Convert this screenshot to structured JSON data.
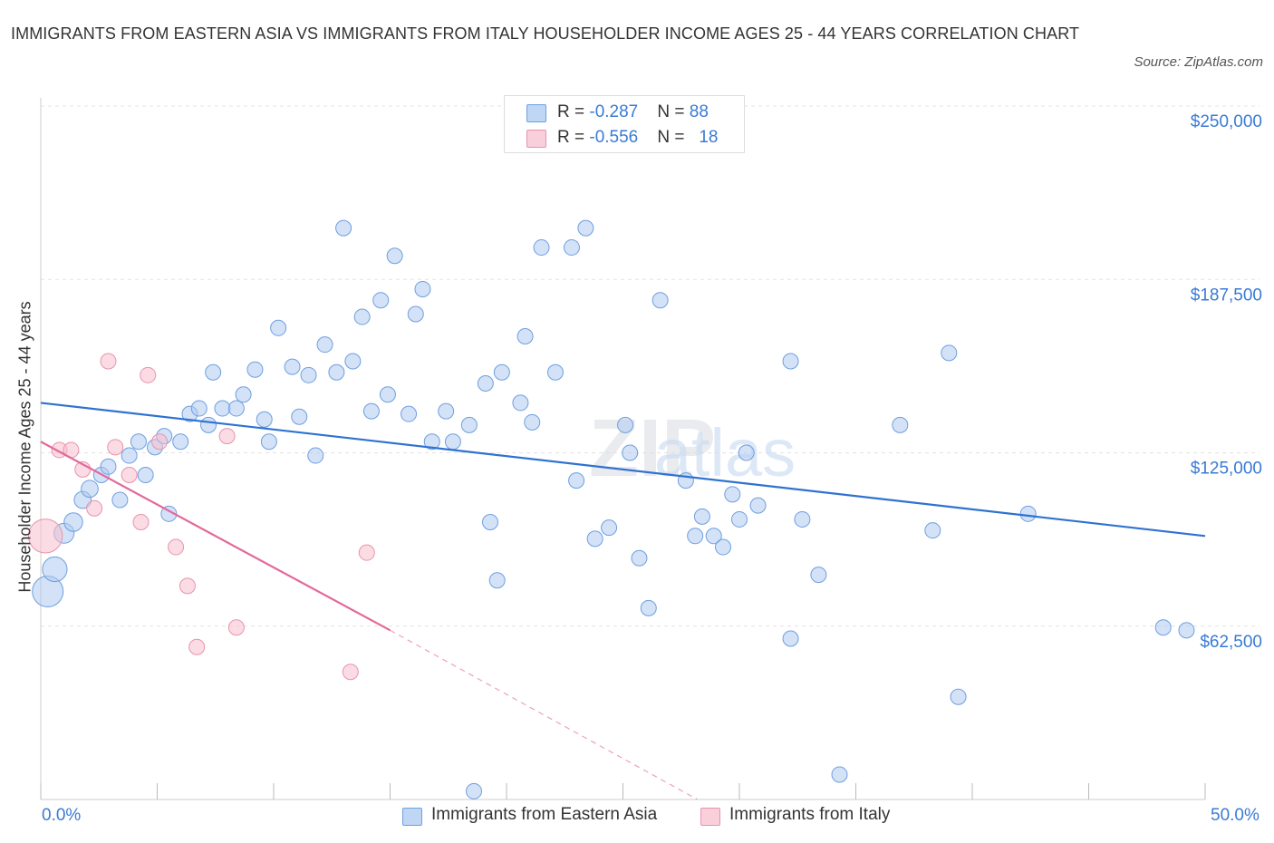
{
  "title": "IMMIGRANTS FROM EASTERN ASIA VS IMMIGRANTS FROM ITALY HOUSEHOLDER INCOME AGES 25 - 44 YEARS CORRELATION CHART",
  "source": "Source: ZipAtlas.com",
  "watermark": {
    "zip": "ZIP",
    "atlas": "atlas"
  },
  "legend": {
    "rows": [
      {
        "r_label": "R = ",
        "r_value": "-0.287",
        "n_label": "N = ",
        "n_value": "88",
        "color": "#aecbf0"
      },
      {
        "r_label": "R = ",
        "r_value": "-0.556",
        "n_label": "N = ",
        "n_value": "18",
        "color": "#f7bfcf"
      }
    ]
  },
  "bottom_legend": [
    {
      "label": "Immigrants from Eastern Asia",
      "color": "#aecbf0"
    },
    {
      "label": "Immigrants from Italy",
      "color": "#f7bfcf"
    }
  ],
  "chart_data": {
    "type": "scatter",
    "title": "IMMIGRANTS FROM EASTERN ASIA VS IMMIGRANTS FROM ITALY HOUSEHOLDER INCOME AGES 25 - 44 YEARS CORRELATION CHART",
    "xlabel": "",
    "ylabel": "Householder Income Ages 25 - 44 years",
    "xlim": [
      0,
      50
    ],
    "ylim": [
      0,
      250000
    ],
    "x_tick_labels": [
      "0.0%",
      "50.0%"
    ],
    "y_ticks": [
      62500,
      125000,
      187500,
      250000
    ],
    "y_tick_labels": [
      "$62,500",
      "$125,000",
      "$187,500",
      "$250,000"
    ],
    "grid": true,
    "series": [
      {
        "name": "Immigrants from Eastern Asia",
        "color": "#aecbf0",
        "stroke": "#6f9fe0",
        "trend": {
          "x": [
            0,
            50
          ],
          "y": [
            143000,
            95000
          ]
        },
        "points": [
          {
            "x": 0.3,
            "y": 75000,
            "s": 2.0
          },
          {
            "x": 0.6,
            "y": 83000,
            "s": 1.6
          },
          {
            "x": 1.0,
            "y": 96000,
            "s": 1.3
          },
          {
            "x": 1.4,
            "y": 100000,
            "s": 1.2
          },
          {
            "x": 1.8,
            "y": 108000,
            "s": 1.1
          },
          {
            "x": 2.1,
            "y": 112000,
            "s": 1.1
          },
          {
            "x": 2.6,
            "y": 117000,
            "s": 1
          },
          {
            "x": 2.9,
            "y": 120000,
            "s": 1
          },
          {
            "x": 3.4,
            "y": 108000,
            "s": 1
          },
          {
            "x": 3.8,
            "y": 124000,
            "s": 1
          },
          {
            "x": 4.2,
            "y": 129000,
            "s": 1
          },
          {
            "x": 4.5,
            "y": 117000,
            "s": 1
          },
          {
            "x": 4.9,
            "y": 127000,
            "s": 1
          },
          {
            "x": 5.3,
            "y": 131000,
            "s": 1
          },
          {
            "x": 5.5,
            "y": 103000,
            "s": 1
          },
          {
            "x": 6.0,
            "y": 129000,
            "s": 1
          },
          {
            "x": 6.4,
            "y": 139000,
            "s": 1
          },
          {
            "x": 6.8,
            "y": 141000,
            "s": 1
          },
          {
            "x": 7.2,
            "y": 135000,
            "s": 1
          },
          {
            "x": 7.4,
            "y": 154000,
            "s": 1
          },
          {
            "x": 7.8,
            "y": 141000,
            "s": 1
          },
          {
            "x": 8.4,
            "y": 141000,
            "s": 1
          },
          {
            "x": 8.7,
            "y": 146000,
            "s": 1
          },
          {
            "x": 9.2,
            "y": 155000,
            "s": 1
          },
          {
            "x": 9.6,
            "y": 137000,
            "s": 1
          },
          {
            "x": 9.8,
            "y": 129000,
            "s": 1
          },
          {
            "x": 10.2,
            "y": 170000,
            "s": 1
          },
          {
            "x": 10.8,
            "y": 156000,
            "s": 1
          },
          {
            "x": 11.1,
            "y": 138000,
            "s": 1
          },
          {
            "x": 11.5,
            "y": 153000,
            "s": 1
          },
          {
            "x": 11.8,
            "y": 124000,
            "s": 1
          },
          {
            "x": 12.2,
            "y": 164000,
            "s": 1
          },
          {
            "x": 12.7,
            "y": 154000,
            "s": 1
          },
          {
            "x": 13.0,
            "y": 206000,
            "s": 1
          },
          {
            "x": 13.4,
            "y": 158000,
            "s": 1
          },
          {
            "x": 13.8,
            "y": 174000,
            "s": 1
          },
          {
            "x": 14.2,
            "y": 140000,
            "s": 1
          },
          {
            "x": 14.6,
            "y": 180000,
            "s": 1
          },
          {
            "x": 14.9,
            "y": 146000,
            "s": 1
          },
          {
            "x": 15.2,
            "y": 196000,
            "s": 1
          },
          {
            "x": 15.8,
            "y": 139000,
            "s": 1
          },
          {
            "x": 16.1,
            "y": 175000,
            "s": 1
          },
          {
            "x": 16.4,
            "y": 184000,
            "s": 1
          },
          {
            "x": 16.8,
            "y": 129000,
            "s": 1
          },
          {
            "x": 17.4,
            "y": 140000,
            "s": 1
          },
          {
            "x": 17.7,
            "y": 129000,
            "s": 1
          },
          {
            "x": 18.4,
            "y": 135000,
            "s": 1
          },
          {
            "x": 18.6,
            "y": 3000,
            "s": 1
          },
          {
            "x": 19.1,
            "y": 150000,
            "s": 1
          },
          {
            "x": 19.3,
            "y": 100000,
            "s": 1
          },
          {
            "x": 19.6,
            "y": 79000,
            "s": 1
          },
          {
            "x": 19.8,
            "y": 154000,
            "s": 1
          },
          {
            "x": 20.6,
            "y": 143000,
            "s": 1
          },
          {
            "x": 20.8,
            "y": 167000,
            "s": 1
          },
          {
            "x": 21.1,
            "y": 136000,
            "s": 1
          },
          {
            "x": 21.5,
            "y": 199000,
            "s": 1
          },
          {
            "x": 22.1,
            "y": 154000,
            "s": 1
          },
          {
            "x": 22.8,
            "y": 199000,
            "s": 1
          },
          {
            "x": 23.0,
            "y": 115000,
            "s": 1
          },
          {
            "x": 23.4,
            "y": 206000,
            "s": 1
          },
          {
            "x": 23.8,
            "y": 94000,
            "s": 1
          },
          {
            "x": 24.4,
            "y": 98000,
            "s": 1
          },
          {
            "x": 25.1,
            "y": 135000,
            "s": 1
          },
          {
            "x": 25.3,
            "y": 125000,
            "s": 1
          },
          {
            "x": 25.7,
            "y": 87000,
            "s": 1
          },
          {
            "x": 26.1,
            "y": 69000,
            "s": 1
          },
          {
            "x": 26.6,
            "y": 180000,
            "s": 1
          },
          {
            "x": 27.7,
            "y": 115000,
            "s": 1
          },
          {
            "x": 28.1,
            "y": 95000,
            "s": 1
          },
          {
            "x": 28.4,
            "y": 102000,
            "s": 1
          },
          {
            "x": 28.9,
            "y": 95000,
            "s": 1
          },
          {
            "x": 29.3,
            "y": 91000,
            "s": 1
          },
          {
            "x": 29.7,
            "y": 110000,
            "s": 1
          },
          {
            "x": 30.0,
            "y": 101000,
            "s": 1
          },
          {
            "x": 30.3,
            "y": 125000,
            "s": 1
          },
          {
            "x": 30.8,
            "y": 106000,
            "s": 1
          },
          {
            "x": 32.2,
            "y": 158000,
            "s": 1
          },
          {
            "x": 32.2,
            "y": 58000,
            "s": 1
          },
          {
            "x": 32.7,
            "y": 101000,
            "s": 1
          },
          {
            "x": 33.4,
            "y": 81000,
            "s": 1
          },
          {
            "x": 34.3,
            "y": 9000,
            "s": 1
          },
          {
            "x": 36.9,
            "y": 135000,
            "s": 1
          },
          {
            "x": 38.3,
            "y": 97000,
            "s": 1
          },
          {
            "x": 39.0,
            "y": 161000,
            "s": 1
          },
          {
            "x": 39.4,
            "y": 37000,
            "s": 1
          },
          {
            "x": 42.4,
            "y": 103000,
            "s": 1
          },
          {
            "x": 48.2,
            "y": 62000,
            "s": 1
          },
          {
            "x": 49.2,
            "y": 61000,
            "s": 1
          }
        ]
      },
      {
        "name": "Immigrants from Italy",
        "color": "#f7bfcf",
        "stroke": "#e893ab",
        "trend": {
          "x": [
            0,
            15
          ],
          "y": [
            129000,
            61000
          ]
        },
        "trend_dashed": {
          "x": [
            15,
            28.2
          ],
          "y": [
            61000,
            0
          ]
        },
        "points": [
          {
            "x": 0.2,
            "y": 95000,
            "s": 2.2
          },
          {
            "x": 0.8,
            "y": 126000,
            "s": 1
          },
          {
            "x": 1.3,
            "y": 126000,
            "s": 1
          },
          {
            "x": 1.8,
            "y": 119000,
            "s": 1
          },
          {
            "x": 2.3,
            "y": 105000,
            "s": 1
          },
          {
            "x": 3.2,
            "y": 127000,
            "s": 1
          },
          {
            "x": 2.9,
            "y": 158000,
            "s": 1
          },
          {
            "x": 3.8,
            "y": 117000,
            "s": 1
          },
          {
            "x": 4.3,
            "y": 100000,
            "s": 1
          },
          {
            "x": 4.6,
            "y": 153000,
            "s": 1
          },
          {
            "x": 5.1,
            "y": 129000,
            "s": 1
          },
          {
            "x": 5.8,
            "y": 91000,
            "s": 1
          },
          {
            "x": 6.3,
            "y": 77000,
            "s": 1
          },
          {
            "x": 6.7,
            "y": 55000,
            "s": 1
          },
          {
            "x": 8.0,
            "y": 131000,
            "s": 1
          },
          {
            "x": 8.4,
            "y": 62000,
            "s": 1
          },
          {
            "x": 13.3,
            "y": 46000,
            "s": 1
          },
          {
            "x": 14.0,
            "y": 89000,
            "s": 1
          }
        ]
      }
    ]
  }
}
